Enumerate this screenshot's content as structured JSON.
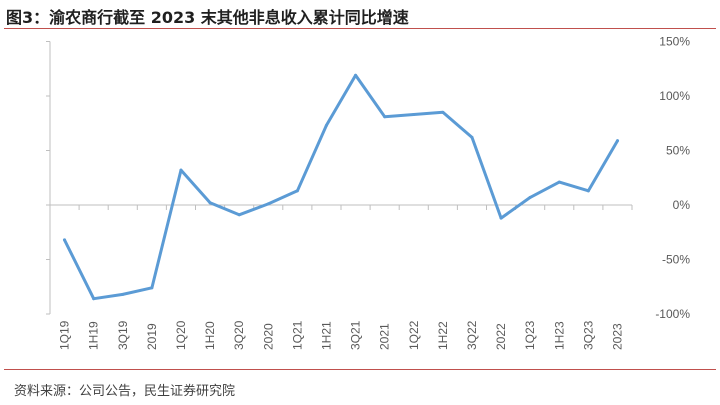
{
  "header": {
    "title": "图3：渝农商行截至 2023 末其他非息收入累计同比增速"
  },
  "footer": {
    "source": "资料来源：公司公告，民生证券研究院"
  },
  "colors": {
    "line": "#5b9bd5",
    "rule": "#c0504d",
    "axis": "#bfbfbf",
    "text": "#595959"
  },
  "chart_data": {
    "type": "line",
    "title": "",
    "xlabel": "",
    "ylabel": "",
    "ylim": [
      -100,
      150
    ],
    "y_ticks": [
      150,
      100,
      50,
      0,
      -50,
      -100
    ],
    "y_tick_labels": [
      "150%",
      "100%",
      "50%",
      "0%",
      "-50%",
      "-100%"
    ],
    "y_axis_position": "right",
    "grid": false,
    "categories": [
      "1Q19",
      "1H19",
      "3Q19",
      "2019",
      "1Q20",
      "1H20",
      "3Q20",
      "2020",
      "1Q21",
      "1H21",
      "3Q21",
      "2021",
      "1Q22",
      "1H22",
      "3Q22",
      "2022",
      "1Q23",
      "1H23",
      "3Q23",
      "2023"
    ],
    "series": [
      {
        "values": [
          -32,
          -86,
          -82,
          -76,
          32,
          2,
          -9,
          1,
          13,
          73,
          119,
          81,
          83,
          85,
          62,
          -12,
          7,
          21,
          13,
          59
        ]
      }
    ]
  }
}
